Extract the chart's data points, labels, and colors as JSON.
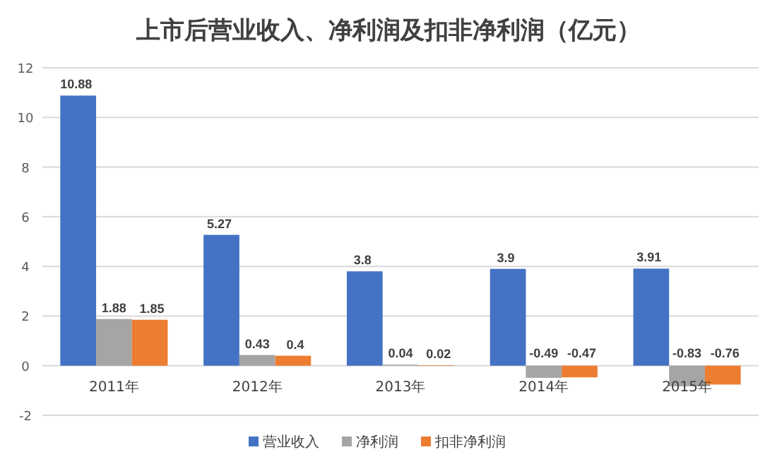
{
  "chart_data": {
    "type": "bar",
    "title": "上市后营业收入、净利润及扣非净利润（亿元）",
    "categories": [
      "2011年",
      "2012年",
      "2013年",
      "2014年",
      "2015年"
    ],
    "series": [
      {
        "name": "营业收入",
        "color": "#4472c4",
        "values": [
          10.88,
          5.27,
          3.8,
          3.9,
          3.91
        ]
      },
      {
        "name": "净利润",
        "color": "#a5a5a5",
        "values": [
          1.88,
          0.43,
          0.04,
          -0.49,
          -0.83
        ]
      },
      {
        "name": "扣非净利润",
        "color": "#ed7d31",
        "values": [
          1.85,
          0.4,
          0.02,
          -0.47,
          -0.76
        ]
      }
    ],
    "ylim": [
      -2,
      12
    ],
    "yticks": [
      -2,
      0,
      2,
      4,
      6,
      8,
      10,
      12
    ],
    "grid": "y",
    "legend": "bottom",
    "data_labels": true
  }
}
